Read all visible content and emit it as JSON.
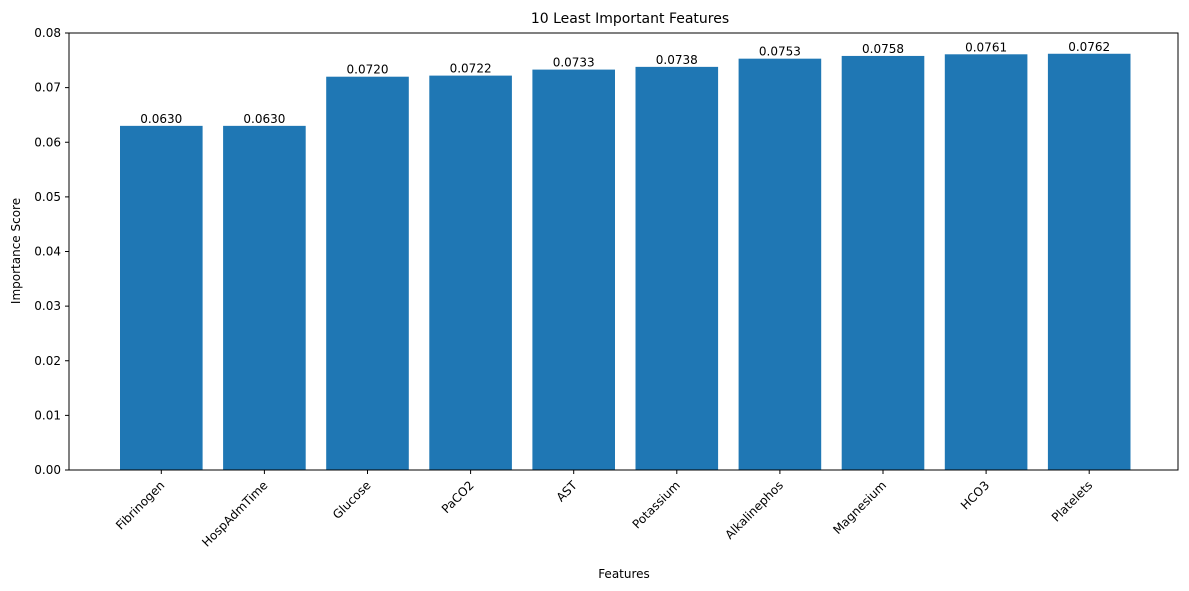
{
  "chart_data": {
    "type": "bar",
    "title": "10 Least Important Features",
    "xlabel": "Features",
    "ylabel": "Importance Score",
    "categories": [
      "Fibrinogen",
      "HospAdmTime",
      "Glucose",
      "PaCO2",
      "AST",
      "Potassium",
      "Alkalinephos",
      "Magnesium",
      "HCO3",
      "Platelets"
    ],
    "values": [
      0.063,
      0.063,
      0.072,
      0.0722,
      0.0733,
      0.0738,
      0.0753,
      0.0758,
      0.0761,
      0.0762
    ],
    "value_labels": [
      "0.0630",
      "0.0630",
      "0.0720",
      "0.0722",
      "0.0733",
      "0.0738",
      "0.0753",
      "0.0758",
      "0.0761",
      "0.0762"
    ],
    "ylim": [
      0,
      0.08
    ],
    "yticks": [
      0.0,
      0.01,
      0.02,
      0.03,
      0.04,
      0.05,
      0.06,
      0.07,
      0.08
    ],
    "ytick_labels": [
      "0.00",
      "0.01",
      "0.02",
      "0.03",
      "0.04",
      "0.05",
      "0.06",
      "0.07",
      "0.08"
    ],
    "bar_color": "#1f77b4",
    "grid": false,
    "legend": false
  }
}
